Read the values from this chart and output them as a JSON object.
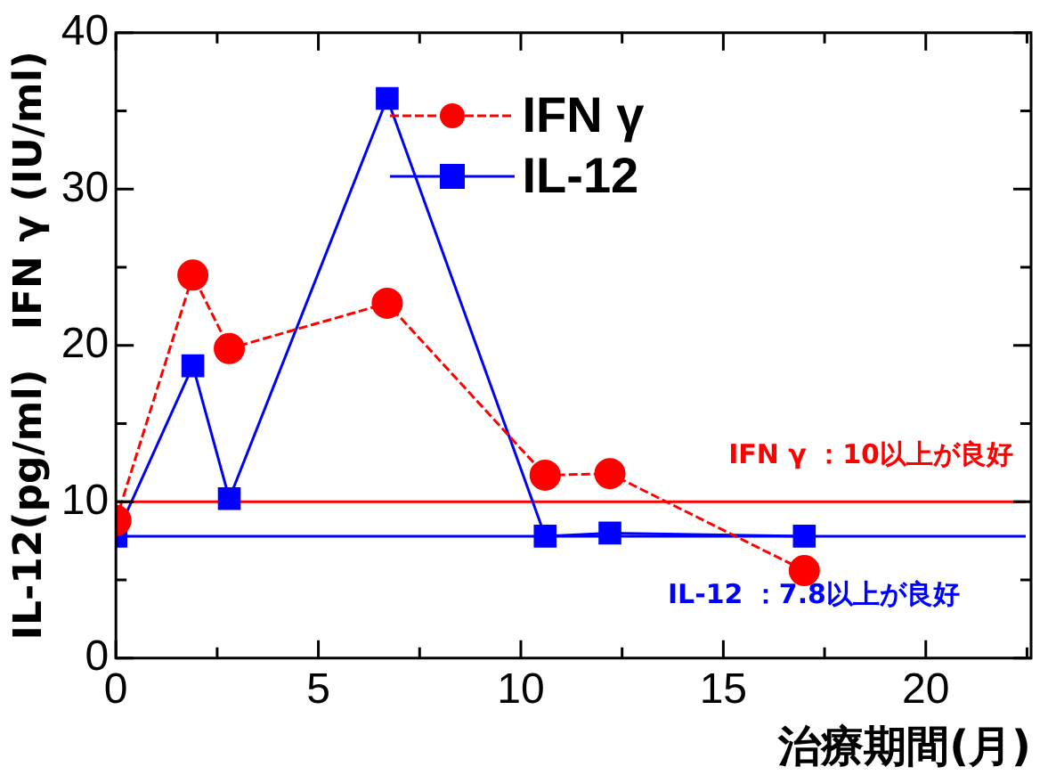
{
  "chart_data": {
    "type": "line",
    "xlabel": "治療期間(月)",
    "ylabel": "IL-12(pg/ml)　IFN γ (IU/ml)",
    "xlim": [
      0,
      22.6
    ],
    "xticks": [
      0,
      {
        "value": 2.5,
        "label": null
      },
      5,
      {
        "value": 7.5,
        "label": null
      },
      10,
      {
        "value": 12.5,
        "label": null
      },
      15,
      {
        "value": 17.5,
        "label": null
      },
      20,
      {
        "value": 22.5,
        "label": null
      }
    ],
    "ylim": [
      0,
      40
    ],
    "yticks": [
      0,
      {
        "value": 5,
        "label": null
      },
      10,
      {
        "value": 15,
        "label": null
      },
      20,
      {
        "value": 25,
        "label": null
      },
      30,
      {
        "value": 35,
        "label": null
      },
      40
    ],
    "series": [
      {
        "name": "IFN γ",
        "color": "#ff0000",
        "marker": "circle",
        "line_style": "dashed",
        "x": [
          0,
          1.9,
          2.8,
          6.7,
          10.6,
          12.2,
          17.0
        ],
        "values": [
          8.8,
          24.5,
          19.8,
          22.7,
          11.7,
          11.8,
          5.6
        ]
      },
      {
        "name": "IL-12",
        "color": "#0000ff",
        "marker": "square",
        "line_style": "solid",
        "x": [
          0,
          1.9,
          2.8,
          6.7,
          10.6,
          12.2,
          17.0
        ],
        "values": [
          7.8,
          18.7,
          10.2,
          35.8,
          7.8,
          8.0,
          7.8
        ]
      }
    ],
    "ref_lines": [
      {
        "axis": "y",
        "value": 10,
        "label": "IFN γ ：10以上が良好",
        "color": "#ff0000"
      },
      {
        "axis": "y",
        "value": 7.8,
        "label": "IL-12 ：7.8以上が良好",
        "color": "#0000ff"
      }
    ],
    "legend": "top",
    "grid": false
  }
}
